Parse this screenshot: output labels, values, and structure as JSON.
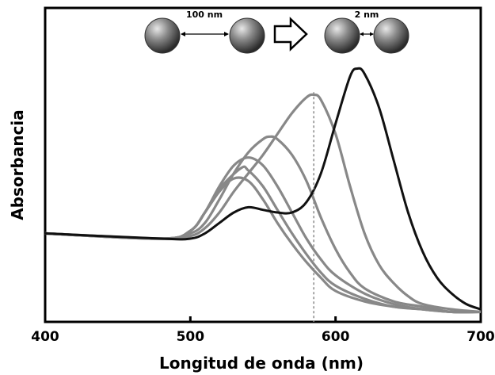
{
  "chart_data": {
    "type": "line",
    "xlabel": "Longitud de onda (nm)",
    "ylabel": "Absorbancia",
    "xlim": [
      400,
      700
    ],
    "ylim": [
      0,
      1
    ],
    "x_ticks": [
      400,
      500,
      600,
      700
    ],
    "grid": false,
    "reference_line_x": 585,
    "annotation": {
      "before_label": "100 nm",
      "after_label": "2 nm"
    },
    "series": [
      {
        "color": "#111111",
        "x": [
          400,
          480,
          500,
          510,
          520,
          530,
          540,
          550,
          560,
          570,
          580,
          590,
          600,
          610,
          615,
          620,
          630,
          640,
          650,
          660,
          670,
          680,
          690,
          700
        ],
        "y": [
          0.32,
          0.3,
          0.3,
          0.32,
          0.36,
          0.4,
          0.42,
          0.41,
          0.4,
          0.4,
          0.44,
          0.55,
          0.74,
          0.92,
          0.95,
          0.93,
          0.8,
          0.6,
          0.4,
          0.25,
          0.15,
          0.09,
          0.05,
          0.03
        ]
      },
      {
        "color": "#888888",
        "x": [
          400,
          480,
          500,
          510,
          520,
          530,
          540,
          550,
          560,
          570,
          580,
          585,
          590,
          600,
          610,
          620,
          630,
          640,
          650,
          660,
          680,
          700
        ],
        "y": [
          0.32,
          0.3,
          0.31,
          0.34,
          0.4,
          0.48,
          0.55,
          0.62,
          0.7,
          0.78,
          0.84,
          0.85,
          0.83,
          0.7,
          0.5,
          0.32,
          0.2,
          0.13,
          0.08,
          0.05,
          0.03,
          0.02
        ]
      },
      {
        "color": "#888888",
        "x": [
          400,
          480,
          500,
          510,
          520,
          530,
          540,
          550,
          555,
          560,
          570,
          580,
          590,
          600,
          610,
          620,
          640,
          660,
          680,
          700
        ],
        "y": [
          0.32,
          0.3,
          0.32,
          0.36,
          0.45,
          0.55,
          0.63,
          0.68,
          0.69,
          0.68,
          0.62,
          0.52,
          0.38,
          0.26,
          0.17,
          0.11,
          0.06,
          0.04,
          0.02,
          0.02
        ]
      },
      {
        "color": "#888888",
        "x": [
          400,
          480,
          500,
          510,
          520,
          530,
          540,
          550,
          560,
          570,
          580,
          590,
          600,
          620,
          640,
          660,
          680,
          700
        ],
        "y": [
          0.32,
          0.3,
          0.33,
          0.4,
          0.5,
          0.58,
          0.61,
          0.58,
          0.5,
          0.4,
          0.3,
          0.22,
          0.16,
          0.09,
          0.05,
          0.03,
          0.02,
          0.02
        ]
      },
      {
        "color": "#888888",
        "x": [
          400,
          480,
          500,
          510,
          520,
          535,
          540,
          550,
          560,
          570,
          580,
          590,
          600,
          620,
          640,
          660,
          680,
          700
        ],
        "y": [
          0.32,
          0.3,
          0.33,
          0.4,
          0.49,
          0.57,
          0.56,
          0.5,
          0.41,
          0.32,
          0.24,
          0.17,
          0.12,
          0.07,
          0.04,
          0.03,
          0.02,
          0.02
        ]
      },
      {
        "color": "#888888",
        "x": [
          400,
          480,
          500,
          510,
          520,
          530,
          540,
          550,
          560,
          570,
          580,
          590,
          600,
          620,
          640,
          660,
          680,
          700
        ],
        "y": [
          0.32,
          0.3,
          0.33,
          0.4,
          0.48,
          0.53,
          0.52,
          0.45,
          0.36,
          0.28,
          0.21,
          0.15,
          0.1,
          0.06,
          0.04,
          0.03,
          0.02,
          0.02
        ]
      }
    ]
  }
}
